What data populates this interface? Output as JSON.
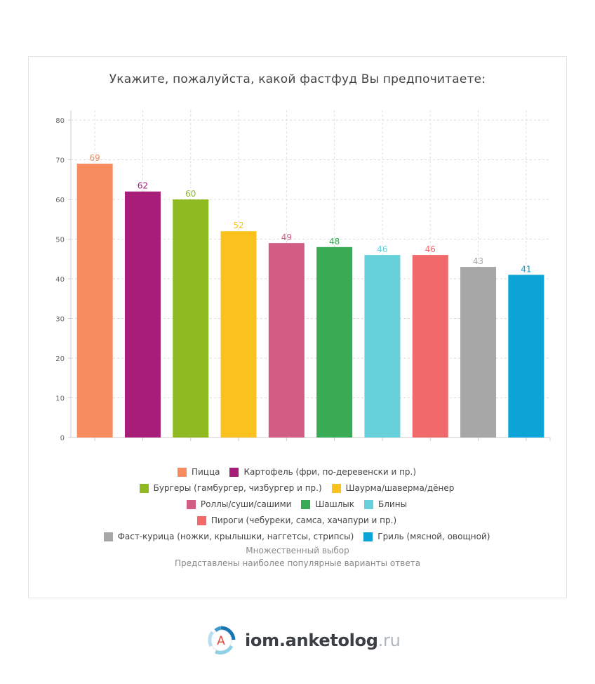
{
  "chart_data": {
    "type": "bar",
    "title": "Укажите, пожалуйста, какой фастфуд Вы предпочитаете:",
    "categories": [
      "Пицца",
      "Картофель (фри, по-деревенски и пр.)",
      "Бургеры (гамбургер, чизбургер и пр.)",
      "Шаурма/шаверма/дёнер",
      "Роллы/суши/сашими",
      "Шашлык",
      "Блины",
      "Пироги (чебуреки, самса, хачапури и пр.)",
      "Фаст-курица (ножки, крылышки, наггетсы, стрипсы)",
      "Гриль (мясной, овощной)"
    ],
    "values": [
      69,
      62,
      60,
      52,
      49,
      48,
      46,
      46,
      43,
      41
    ],
    "colors": [
      "#f68c5f",
      "#a61e77",
      "#8fba22",
      "#fbc21f",
      "#d15c84",
      "#3aab55",
      "#67d1db",
      "#f2696b",
      "#a7a7a7",
      "#0ca3d6"
    ],
    "ylim": [
      0,
      80
    ],
    "yticks": [
      0,
      10,
      20,
      30,
      40,
      50,
      60,
      70,
      80
    ],
    "grid": true,
    "legend_position": "bottom",
    "xlabel": "",
    "ylabel": ""
  },
  "footnote": {
    "line1": "Множественный выбор",
    "line2": "Представлены наиболее популярные варианты ответа"
  },
  "branding": {
    "logo_letter": "A",
    "name": "iom.anketolog",
    "tld": ".ru"
  }
}
